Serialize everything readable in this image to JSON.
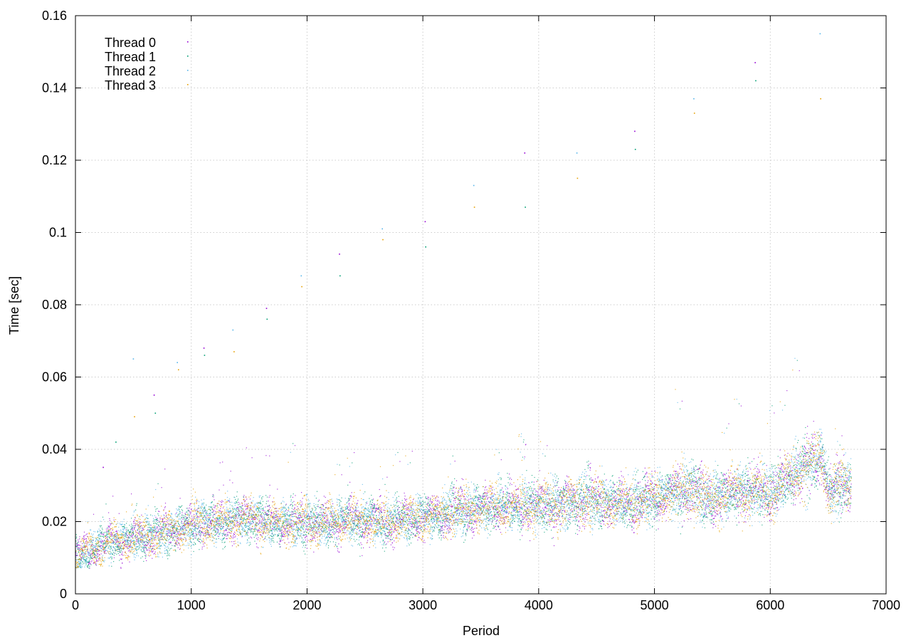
{
  "chart_data": {
    "type": "scatter",
    "title": "",
    "xlabel": "Period",
    "ylabel": "Time [sec]",
    "xlim": [
      0,
      7000
    ],
    "ylim": [
      0,
      0.16
    ],
    "x_ticks": [
      0,
      1000,
      2000,
      3000,
      4000,
      5000,
      6000,
      7000
    ],
    "x_tick_labels": [
      "0",
      "1000",
      "2000",
      "3000",
      "4000",
      "5000",
      "6000",
      "7000"
    ],
    "y_ticks": [
      0,
      0.02,
      0.04,
      0.06,
      0.08,
      0.1,
      0.12,
      0.14,
      0.16
    ],
    "y_tick_labels": [
      "0",
      "0.02",
      "0.04",
      "0.06",
      "0.08",
      "0.1",
      "0.12",
      "0.14",
      "0.16"
    ],
    "grid": true,
    "legend_position": "top-left",
    "x_max_observed": 6700,
    "series": [
      {
        "name": "Thread 0",
        "color": "#9400d3"
      },
      {
        "name": "Thread 1",
        "color": "#009e73"
      },
      {
        "name": "Thread 2",
        "color": "#56b4e9"
      },
      {
        "name": "Thread 3",
        "color": "#e69f00"
      }
    ],
    "trend": [
      [
        0,
        0.01
      ],
      [
        100,
        0.0115
      ],
      [
        200,
        0.013
      ],
      [
        300,
        0.0145
      ],
      [
        500,
        0.015
      ],
      [
        700,
        0.0165
      ],
      [
        900,
        0.018
      ],
      [
        1000,
        0.019
      ],
      [
        1200,
        0.02
      ],
      [
        1500,
        0.021
      ],
      [
        1800,
        0.0195
      ],
      [
        2100,
        0.02
      ],
      [
        2400,
        0.02
      ],
      [
        2700,
        0.02
      ],
      [
        3000,
        0.021
      ],
      [
        3300,
        0.023
      ],
      [
        3600,
        0.024
      ],
      [
        3900,
        0.024
      ],
      [
        4200,
        0.025
      ],
      [
        4500,
        0.026
      ],
      [
        4800,
        0.025
      ],
      [
        5000,
        0.027
      ],
      [
        5300,
        0.029
      ],
      [
        5500,
        0.027
      ],
      [
        5800,
        0.028
      ],
      [
        6000,
        0.028
      ],
      [
        6300,
        0.035
      ],
      [
        6450,
        0.038
      ],
      [
        6500,
        0.029
      ],
      [
        6700,
        0.03
      ]
    ],
    "outliers": [
      [
        240,
        0.035
      ],
      [
        350,
        0.042
      ],
      [
        500,
        0.065
      ],
      [
        510,
        0.049
      ],
      [
        680,
        0.055
      ],
      [
        690,
        0.05
      ],
      [
        880,
        0.064
      ],
      [
        890,
        0.062
      ],
      [
        1110,
        0.068
      ],
      [
        1115,
        0.066
      ],
      [
        1360,
        0.073
      ],
      [
        1370,
        0.067
      ],
      [
        1650,
        0.079
      ],
      [
        1655,
        0.076
      ],
      [
        1950,
        0.088
      ],
      [
        1955,
        0.085
      ],
      [
        2280,
        0.094
      ],
      [
        2285,
        0.088
      ],
      [
        2650,
        0.101
      ],
      [
        2655,
        0.098
      ],
      [
        3020,
        0.103
      ],
      [
        3025,
        0.096
      ],
      [
        3440,
        0.113
      ],
      [
        3445,
        0.107
      ],
      [
        3880,
        0.122
      ],
      [
        3885,
        0.107
      ],
      [
        4330,
        0.122
      ],
      [
        4335,
        0.115
      ],
      [
        4830,
        0.128
      ],
      [
        4835,
        0.123
      ],
      [
        5340,
        0.137
      ],
      [
        5345,
        0.133
      ],
      [
        5870,
        0.147
      ],
      [
        5875,
        0.142
      ],
      [
        6430,
        0.155
      ],
      [
        6435,
        0.137
      ]
    ]
  }
}
